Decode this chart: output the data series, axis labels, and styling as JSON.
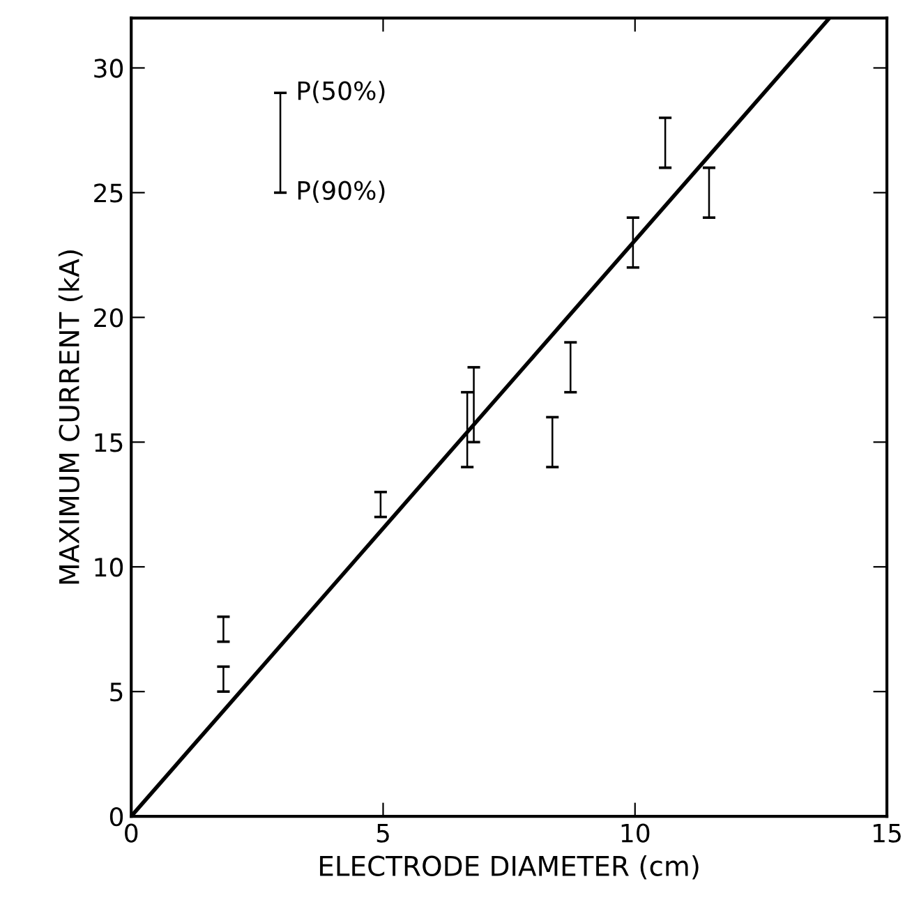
{
  "chart_data": {
    "type": "bar",
    "xlabel": "ELECTRODE DIAMETER (cm)",
    "ylabel": "MAXIMUM CURRENT (kA)",
    "xlim": [
      0,
      15
    ],
    "ylim": [
      0,
      32
    ],
    "xticks": [
      0,
      5,
      10,
      15
    ],
    "yticks": [
      0,
      5,
      10,
      15,
      20,
      25,
      30
    ],
    "grid": false,
    "legend": false,
    "series": [
      {
        "color": "#000000",
        "x": [
          1.83,
          4.95,
          6.67,
          6.8,
          8.36,
          8.72,
          9.96,
          10.6,
          11.47
        ],
        "base": [
          7,
          12,
          14,
          15,
          14,
          17,
          22,
          26,
          24
        ],
        "values": [
          1,
          1,
          3,
          3,
          2,
          2,
          2,
          2,
          2
        ]
      },
      {
        "color": "#000000",
        "x": [
          1.83
        ],
        "base": [
          5
        ],
        "values": [
          1
        ]
      },
      {
        "color": "#000000",
        "x": [
          2.96
        ],
        "base": [
          25
        ],
        "values": [
          4
        ]
      },
      {
        "type": "line",
        "color": "#000000",
        "x": [
          0,
          13.86
        ],
        "values": [
          0,
          32
        ]
      }
    ],
    "annotations": [
      {
        "text": "P(50%)",
        "x": 2.96,
        "y": 29
      },
      {
        "text": "P(90%)",
        "x": 2.96,
        "y": 25
      }
    ]
  }
}
